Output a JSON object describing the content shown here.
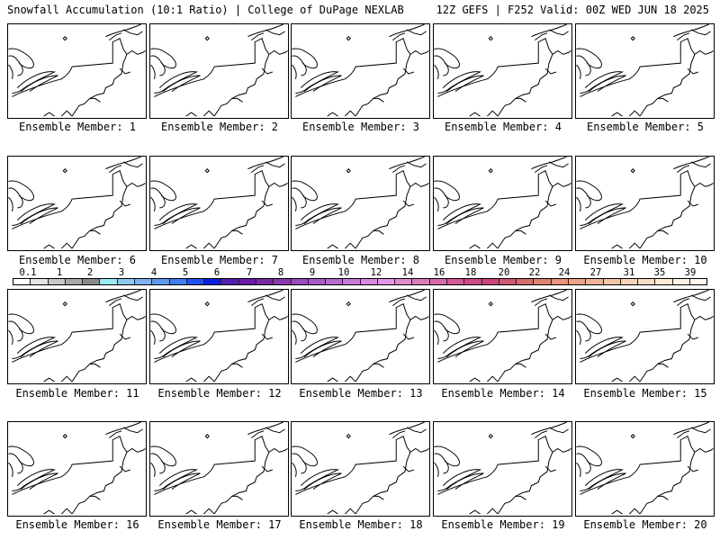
{
  "header": {
    "title_left": "Snowfall Accumulation (10:1 Ratio) | College of DuPage NEXLAB",
    "title_right": "12Z GEFS | F252 Valid: 00Z WED JUN 18 2025"
  },
  "panels": [
    {
      "label": "Ensemble Member: 1"
    },
    {
      "label": "Ensemble Member: 2"
    },
    {
      "label": "Ensemble Member: 3"
    },
    {
      "label": "Ensemble Member: 4"
    },
    {
      "label": "Ensemble Member: 5"
    },
    {
      "label": "Ensemble Member: 6"
    },
    {
      "label": "Ensemble Member: 7"
    },
    {
      "label": "Ensemble Member: 8"
    },
    {
      "label": "Ensemble Member: 9"
    },
    {
      "label": "Ensemble Member: 10"
    },
    {
      "label": "Ensemble Member: 11"
    },
    {
      "label": "Ensemble Member: 12"
    },
    {
      "label": "Ensemble Member: 13"
    },
    {
      "label": "Ensemble Member: 14"
    },
    {
      "label": "Ensemble Member: 15"
    },
    {
      "label": "Ensemble Member: 16"
    },
    {
      "label": "Ensemble Member: 17"
    },
    {
      "label": "Ensemble Member: 18"
    },
    {
      "label": "Ensemble Member: 19"
    },
    {
      "label": "Ensemble Member: 20"
    }
  ],
  "colorbar": {
    "labels": [
      "0.1",
      "1",
      "2",
      "3",
      "4",
      "5",
      "6",
      "7",
      "8",
      "9",
      "10",
      "12",
      "14",
      "16",
      "18",
      "20",
      "22",
      "24",
      "27",
      "31",
      "35",
      "39"
    ],
    "colors": [
      "#ffffff",
      "#e4e4e4",
      "#c8c8c8",
      "#a8a8a8",
      "#8a8a8a",
      "#9be8f0",
      "#8fc8f2",
      "#7fb3f0",
      "#5f9af0",
      "#3f7ff2",
      "#2050f0",
      "#0c20e0",
      "#5020b0",
      "#6a1ca8",
      "#7a2aa0",
      "#8a3ab0",
      "#9a4ac0",
      "#a85ac8",
      "#b86ad0",
      "#c87ad8",
      "#d88ae0",
      "#e496e8",
      "#e08acc",
      "#dc7ab8",
      "#d86aa8",
      "#d45a98",
      "#d04a88",
      "#cc4478",
      "#d05870",
      "#d86c6c",
      "#e08070",
      "#e89478",
      "#eca486",
      "#f0b496",
      "#f4c4a6",
      "#f6d2b6",
      "#f8dec6",
      "#faead6",
      "#fcf2e4",
      "#fef8f0"
    ]
  }
}
